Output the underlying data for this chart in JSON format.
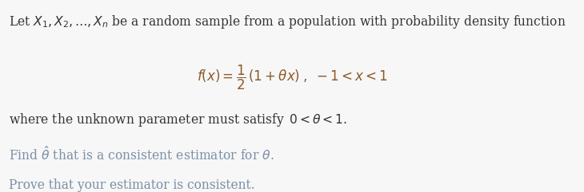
{
  "background_color": "#f7f7f7",
  "text_color_black": "#333333",
  "text_color_blue": "#7a8fa6",
  "text_color_formula": "#8B5A2B",
  "line1": "Let $X_1, X_2, \\ldots, X_n$ be a random sample from a population with probability density function",
  "line2": "$f(x) = \\dfrac{1}{2}\\,(1 + \\theta x)\\;,\\;-1 < x < 1$",
  "line3": "where the unknown parameter must satisfy $\\,0 < \\theta < 1$.",
  "line4": "Find $\\hat{\\theta}$ that is a consistent estimator for $\\theta$.",
  "line5": "Prove that your estimator is consistent.",
  "fig_width": 7.3,
  "fig_height": 2.41,
  "dpi": 100
}
